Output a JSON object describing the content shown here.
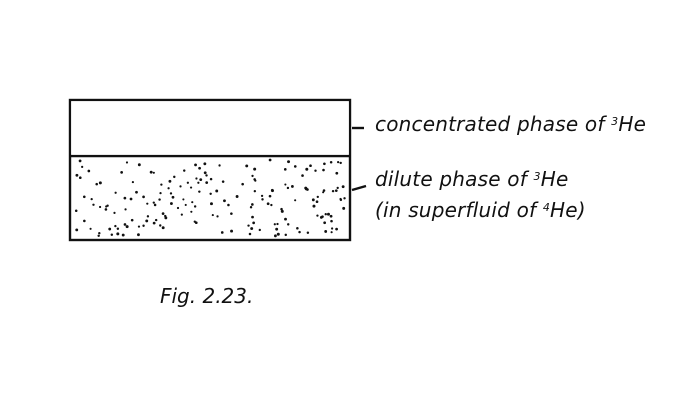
{
  "diagram": {
    "top_label": {
      "prefix": "concentrated phase of ",
      "isotope_mass": "3",
      "element": "He"
    },
    "bottom_label": {
      "line1_prefix": "dilute phase of ",
      "line1_isotope_mass": "3",
      "line1_element": "He",
      "line2_prefix": "(in superfluid of ",
      "line2_isotope_mass": "4",
      "line2_element": "He)"
    },
    "caption": "Fig. 2.23."
  }
}
